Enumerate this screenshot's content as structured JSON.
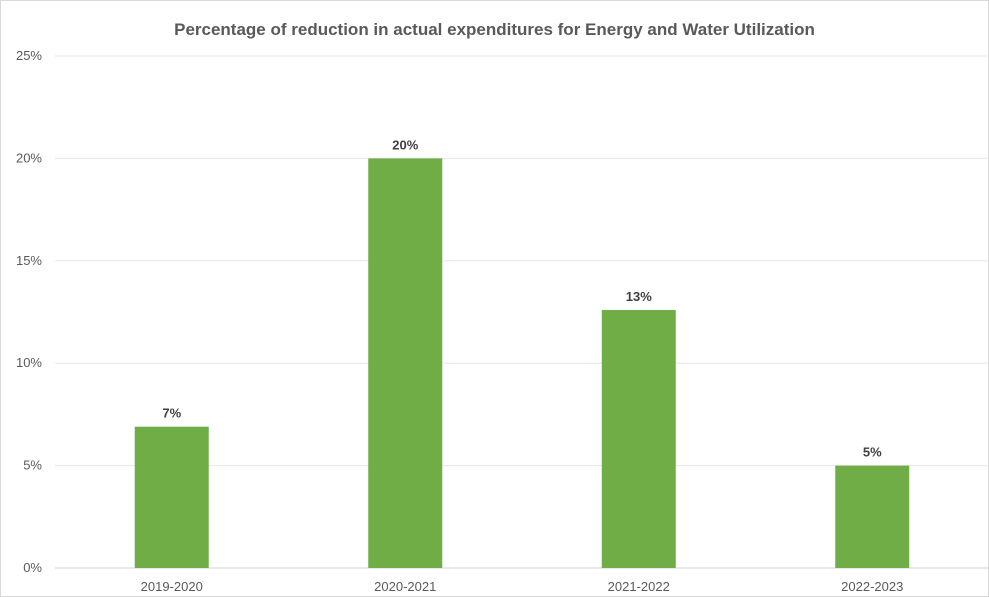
{
  "chart_data": {
    "type": "bar",
    "title": "Percentage of reduction in actual expenditures for Energy and Water Utilization",
    "categories": [
      "2019-2020",
      "2020-2021",
      "2021-2022",
      "2022-2023"
    ],
    "values": [
      6.9,
      20.0,
      12.6,
      5.0
    ],
    "data_labels": [
      "7%",
      "20%",
      "13%",
      "5%"
    ],
    "ylim": [
      0,
      25
    ],
    "yticks": [
      0,
      5,
      10,
      15,
      20,
      25
    ],
    "ytick_labels": [
      "0%",
      "5%",
      "10%",
      "15%",
      "20%",
      "25%"
    ],
    "xlabel": "",
    "ylabel": "",
    "grid": true,
    "legend": "none",
    "bar_color": "#70ad47",
    "gridline_color": "#e6e6e6"
  }
}
